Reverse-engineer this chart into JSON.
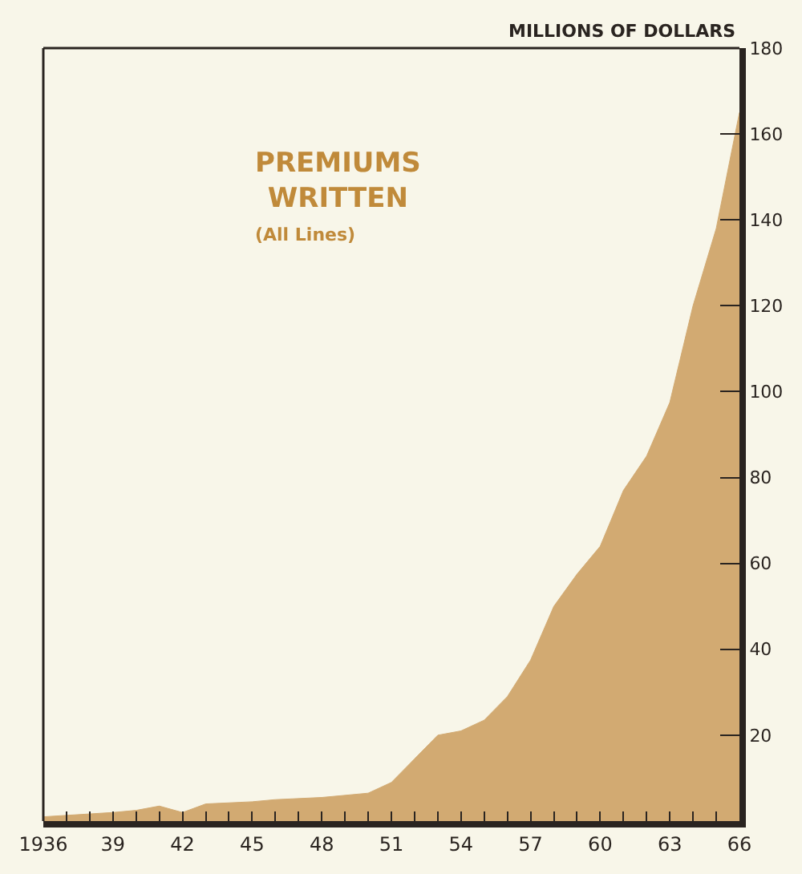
{
  "chart_data": {
    "type": "area",
    "title": "PREMIUMS WRITTEN",
    "subtitle": "(All Lines)",
    "ylabel": "MILLIONS OF DOLLARS",
    "x": [
      1936,
      1939,
      1940,
      1941,
      1942,
      1943,
      1945,
      1946,
      1948,
      1950,
      1951,
      1952,
      1953,
      1954,
      1955,
      1956,
      1957,
      1958,
      1959,
      1960,
      1961,
      1962,
      1963,
      1964,
      1965,
      1966
    ],
    "series": [
      {
        "color": "#d2aa72",
        "values": [
          1,
          2,
          2.5,
          3.5,
          2,
          4,
          4.5,
          5,
          5.5,
          6.5,
          9,
          14.5,
          20,
          21,
          23.5,
          29,
          37.5,
          50,
          57.5,
          64,
          77,
          85,
          97.5,
          120,
          138,
          165
        ]
      }
    ],
    "xlim": [
      1936,
      1966
    ],
    "xticks": [
      {
        "value": 1936,
        "label": "1936"
      },
      {
        "value": 1939,
        "label": "39"
      },
      {
        "value": 1942,
        "label": "42"
      },
      {
        "value": 1945,
        "label": "45"
      },
      {
        "value": 1948,
        "label": "48"
      },
      {
        "value": 1951,
        "label": "51"
      },
      {
        "value": 1954,
        "label": "54"
      },
      {
        "value": 1957,
        "label": "57"
      },
      {
        "value": 1960,
        "label": "60"
      },
      {
        "value": 1963,
        "label": "63"
      },
      {
        "value": 1966,
        "label": "66"
      }
    ],
    "ylim": [
      0,
      180
    ],
    "yticks": [
      20,
      40,
      60,
      80,
      100,
      120,
      140,
      160,
      180
    ]
  }
}
